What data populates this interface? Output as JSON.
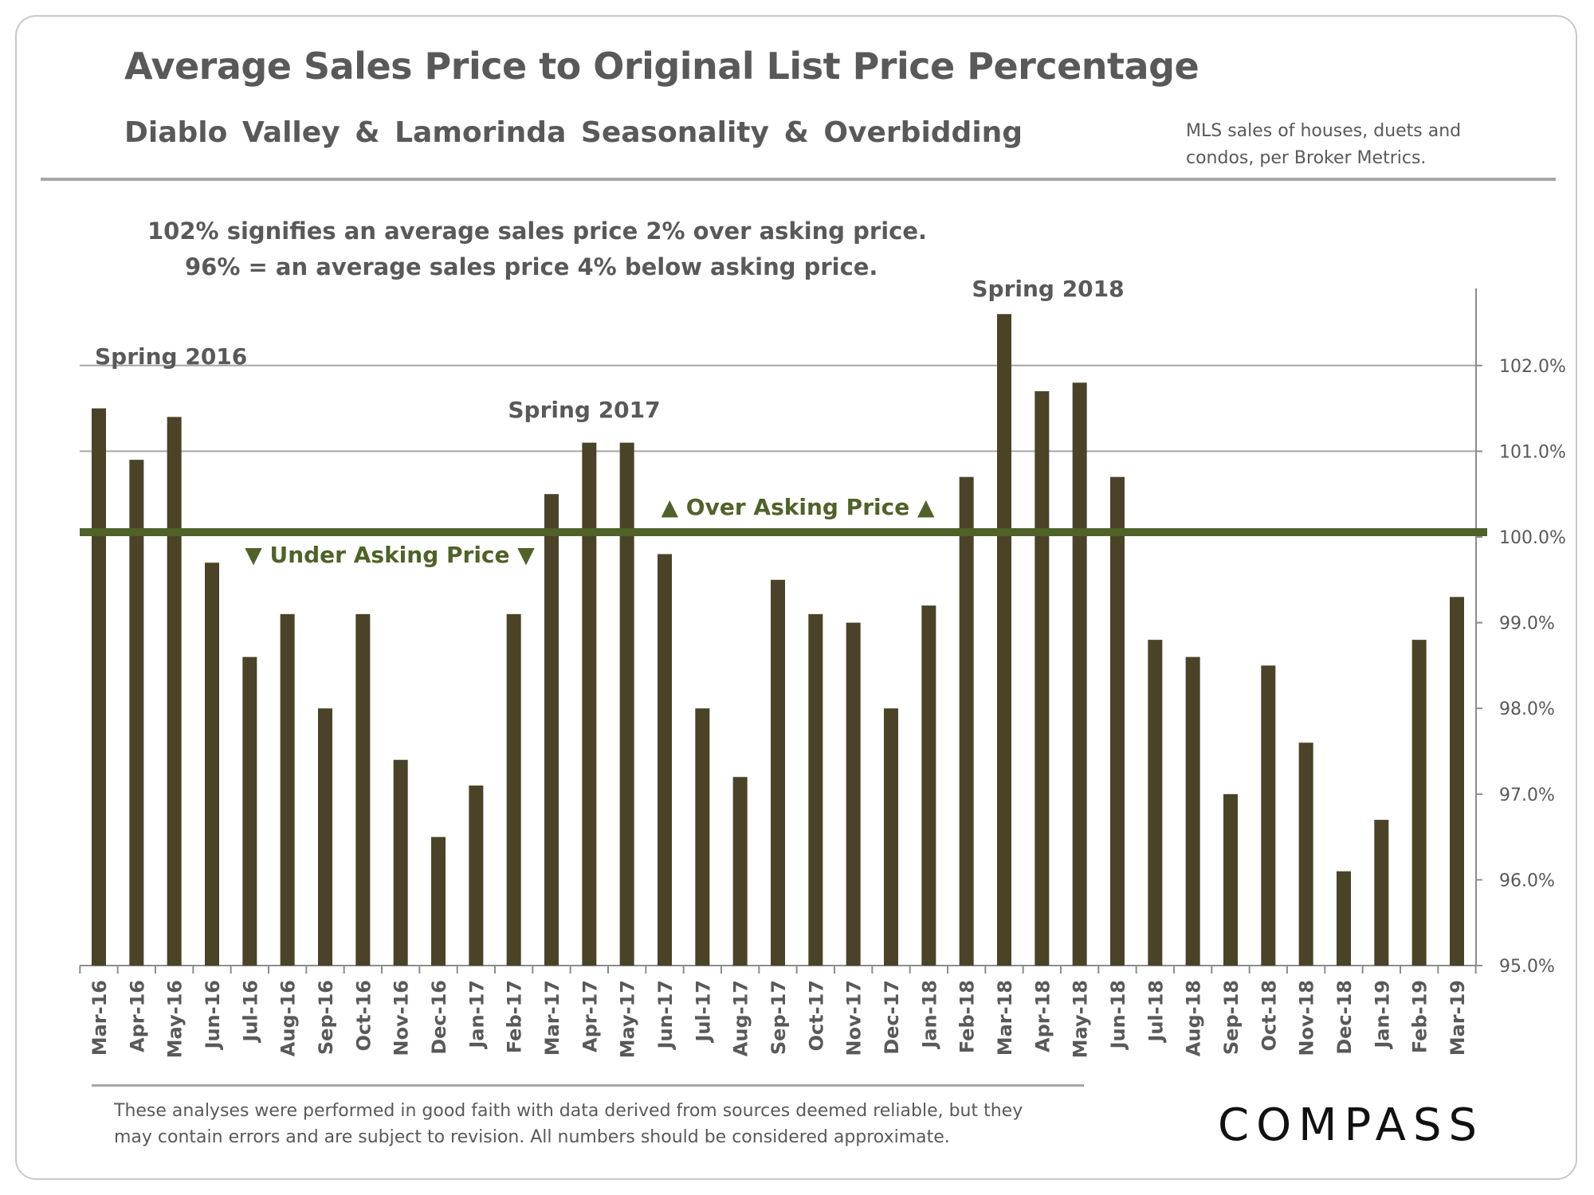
{
  "header": {
    "title": "Average Sales Price to Original List Price Percentage",
    "subtitle": "Diablo Valley & Lamorinda Seasonality & Overbidding",
    "source_note_line1": "MLS sales of houses, duets and",
    "source_note_line2": "condos, per Broker Metrics."
  },
  "explanation": {
    "line1": "102% signifies an average sales price 2% over asking price.",
    "line2": "96% = an average sales price 4% below asking price."
  },
  "footer": {
    "disclaimer_line1": "These analyses were performed in good faith with data derived from sources deemed reliable, but they",
    "disclaimer_line2": "may contain errors and are subject to revision. All numbers should be considered approximate.",
    "logo": "COMPASS"
  },
  "colors": {
    "bar": "#4a4328",
    "reference_line": "#4f6228",
    "annotation_green": "#4f6228",
    "grid": "#a6a6a6",
    "text": "#595959"
  },
  "chart_data": {
    "type": "bar",
    "title": "Average Sales Price to Original List Price Percentage",
    "categories": [
      "Mar-16",
      "Apr-16",
      "May-16",
      "Jun-16",
      "Jul-16",
      "Aug-16",
      "Sep-16",
      "Oct-16",
      "Nov-16",
      "Dec-16",
      "Jan-17",
      "Feb-17",
      "Mar-17",
      "Apr-17",
      "May-17",
      "Jun-17",
      "Jul-17",
      "Aug-17",
      "Sep-17",
      "Oct-17",
      "Nov-17",
      "Dec-17",
      "Jan-18",
      "Feb-18",
      "Mar-18",
      "Apr-18",
      "May-18",
      "Jun-18",
      "Jul-18",
      "Aug-18",
      "Sep-18",
      "Oct-18",
      "Nov-18",
      "Dec-18",
      "Jan-19",
      "Feb-19",
      "Mar-19"
    ],
    "values": [
      101.5,
      100.9,
      101.4,
      99.7,
      98.6,
      99.1,
      98.0,
      99.1,
      97.4,
      96.5,
      97.1,
      99.1,
      100.5,
      101.1,
      101.1,
      99.8,
      98.0,
      97.2,
      99.5,
      99.1,
      99.0,
      98.0,
      99.2,
      100.7,
      102.6,
      101.7,
      101.8,
      100.7,
      98.8,
      98.6,
      97.0,
      98.5,
      97.6,
      96.1,
      96.7,
      98.8,
      99.3
    ],
    "ylim": [
      95,
      102.9
    ],
    "yticks": [
      95,
      96,
      97,
      98,
      99,
      100,
      101,
      102
    ],
    "ytick_labels": [
      "95.0%",
      "96.0%",
      "97.0%",
      "98.0%",
      "99.0%",
      "100.0%",
      "101.0%",
      "102.0%"
    ],
    "y_axis_side": "right",
    "grid_lines": [
      101,
      102
    ],
    "reference_line": {
      "value": 100.0
    },
    "annotations": [
      {
        "text": "Spring 2016",
        "category": "Mar-16"
      },
      {
        "text": "Spring 2017",
        "category": "Apr-17"
      },
      {
        "text": "Spring 2018",
        "category": "Mar-18"
      },
      {
        "text": "▲ Over Asking Price ▲",
        "category": "Oct-17"
      },
      {
        "text": "▼ Under Asking Price ▼",
        "category": "Oct-16"
      }
    ],
    "xlabel": "",
    "ylabel": ""
  }
}
